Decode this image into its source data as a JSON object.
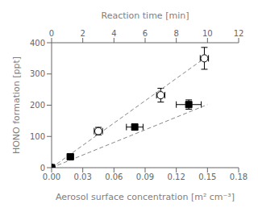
{
  "chart_data": {
    "type": "scatter",
    "xlabel": "Aerosol surface concentration [m² cm⁻³]",
    "ylabel": "HONO formation [ppt]",
    "x2label": "Reaction time [min]",
    "xlim": [
      0.0,
      0.18
    ],
    "xticks": [
      {
        "value": 0.0,
        "label": "0.00"
      },
      0.03,
      0.06,
      0.09,
      0.12,
      0.15,
      0.18
    ],
    "x2lim": [
      0.0,
      0.18
    ],
    "x2ticks": [
      {
        "value": 0.0,
        "label": "0"
      },
      {
        "value": 0.03,
        "label": "2"
      },
      {
        "value": 0.06,
        "label": "4"
      },
      {
        "value": 0.09,
        "label": "6"
      },
      {
        "value": 0.12,
        "label": "8"
      },
      {
        "value": 0.15,
        "label": "10"
      },
      {
        "value": 0.18,
        "label": "12"
      }
    ],
    "ylim": [
      0,
      400
    ],
    "yticks": [
      0,
      100,
      200,
      300,
      400
    ],
    "series": [
      {
        "type": "line",
        "line_style": "dashed",
        "color": "#888888",
        "x": [
          0.0,
          0.15
        ],
        "values": [
          0,
          357
        ]
      },
      {
        "type": "line",
        "line_style": "dashed",
        "color": "#888888",
        "x": [
          0.0,
          0.15
        ],
        "values": [
          0,
          202
        ]
      },
      {
        "type": "scatter",
        "marker": "open_circle",
        "color": "#000000",
        "x": [
          0.0,
          0.045,
          0.105,
          0.147
        ],
        "values": [
          0,
          117,
          232,
          350
        ],
        "xerr": [
          0,
          0.004,
          0.004,
          0.004
        ],
        "yerr": [
          0,
          12,
          22,
          35
        ]
      },
      {
        "type": "scatter",
        "marker": "square",
        "color": "#000000",
        "x": [
          0.0,
          0.018,
          0.08,
          0.132
        ],
        "values": [
          0,
          35,
          130,
          202
        ],
        "xerr": [
          0,
          0.003,
          0.008,
          0.012
        ],
        "yerr": [
          0,
          5,
          10,
          15
        ]
      }
    ]
  }
}
